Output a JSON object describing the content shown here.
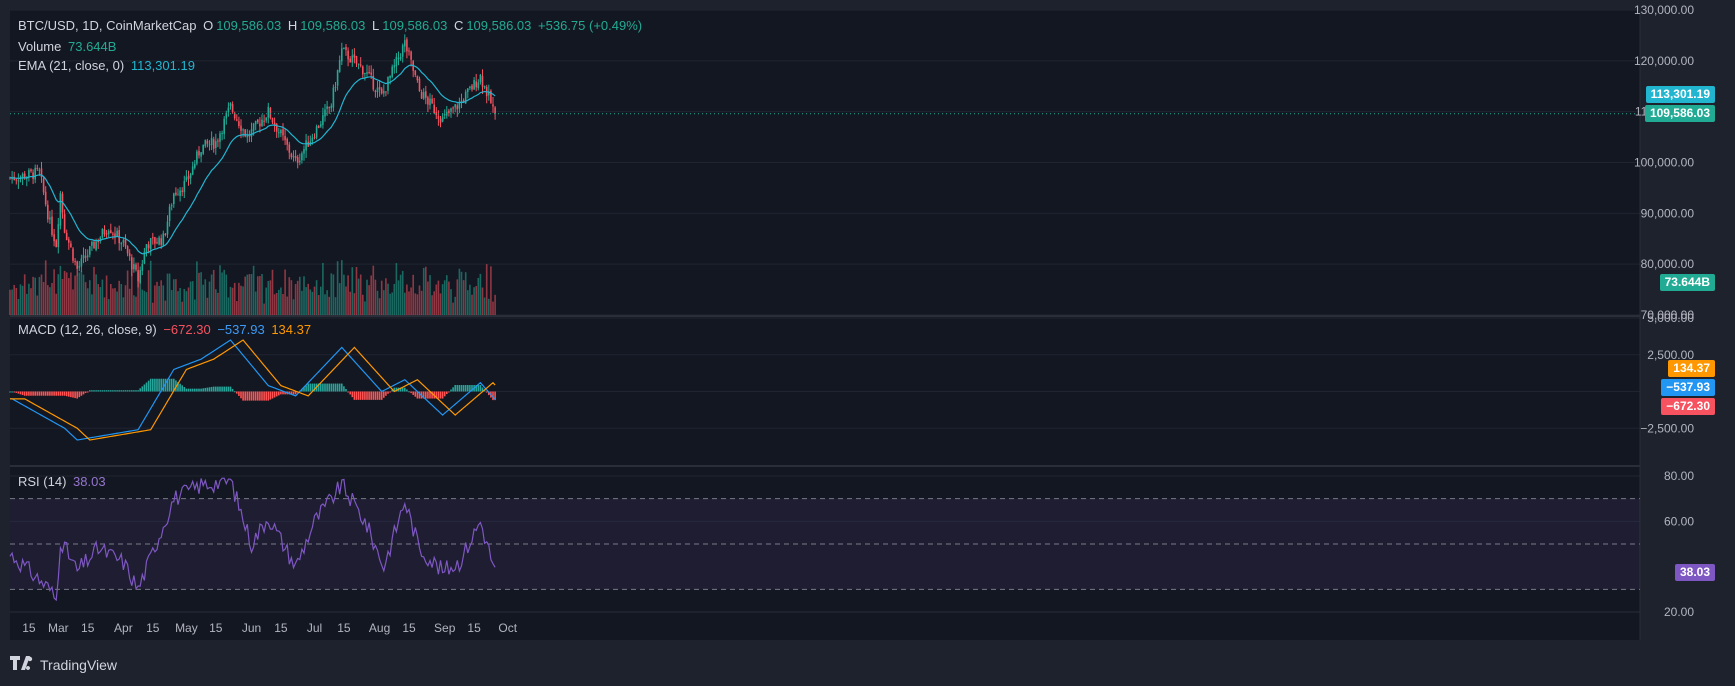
{
  "symbol_header": {
    "symbol": "BTC/USD, 1D, CoinMarketCap",
    "o_label": "O",
    "o": "109,586.03",
    "h_label": "H",
    "h": "109,586.03",
    "l_label": "L",
    "l": "109,586.03",
    "c_label": "C",
    "c": "109,586.03",
    "change": "+536.75 (+0.49%)"
  },
  "volume": {
    "label": "Volume",
    "value": "73.644B"
  },
  "ema": {
    "label": "EMA (21, close, 0)",
    "value": "113,301.19"
  },
  "macd": {
    "label": "MACD (12, 26, close, 9)",
    "hist": "−672.30",
    "macd": "−537.93",
    "signal": "134.37"
  },
  "rsi": {
    "label": "RSI (14)",
    "value": "38.03"
  },
  "price_axis": [
    "130,000.00",
    "120,000.00",
    "110,000.00",
    "100,000.00",
    "90,000.00",
    "80,000.00",
    "70,000.00"
  ],
  "macd_axis": [
    "5,000.00",
    "2,500.00",
    "−2,500.00"
  ],
  "rsi_axis": [
    "80.00",
    "60.00",
    "20.00"
  ],
  "badges": {
    "ema": "113,301.19",
    "price": "109,586.03",
    "volume": "73.644B",
    "signal": "134.37",
    "macd": "−537.93",
    "hist": "−672.30",
    "rsi": "38.03"
  },
  "time_axis": [
    "15",
    "Mar",
    "15",
    "Apr",
    "15",
    "May",
    "15",
    "Jun",
    "15",
    "Jul",
    "15",
    "Aug",
    "15",
    "Sep",
    "15",
    "Oct"
  ],
  "brand": "TradingView",
  "colors": {
    "up": "#22ab94",
    "down": "#f7525f",
    "ema": "#22b5d0",
    "macd": "#2196f3",
    "signal": "#ff9800",
    "rsi": "#7e57c2",
    "bg": "#131722"
  },
  "chart_data": {
    "type": "candlestick",
    "timeframe": "1D",
    "price_ylim": [
      70000,
      130000
    ],
    "close_keypoints": [
      [
        "Feb 7",
        97000
      ],
      [
        "Feb 20",
        98000
      ],
      [
        "Feb 25",
        88000
      ],
      [
        "Feb 28",
        84000
      ],
      [
        "Mar 2",
        94000
      ],
      [
        "Mar 4",
        87000
      ],
      [
        "Mar 10",
        79000
      ],
      [
        "Mar 20",
        85000
      ],
      [
        "Mar 25",
        87500
      ],
      [
        "Apr 1",
        84000
      ],
      [
        "Apr 8",
        77000
      ],
      [
        "Apr 12",
        84000
      ],
      [
        "Apr 20",
        85000
      ],
      [
        "Apr 25",
        94000
      ],
      [
        "May 1",
        96000
      ],
      [
        "May 8",
        103000
      ],
      [
        "May 15",
        104000
      ],
      [
        "May 22",
        111000
      ],
      [
        "May 30",
        105000
      ],
      [
        "Jun 9",
        110000
      ],
      [
        "Jun 22",
        100000
      ],
      [
        "Jul 1",
        106000
      ],
      [
        "Jul 9",
        111500
      ],
      [
        "Jul 14",
        122000
      ],
      [
        "Jul 25",
        118000
      ],
      [
        "Aug 2",
        113000
      ],
      [
        "Aug 13",
        123500
      ],
      [
        "Aug 20",
        114000
      ],
      [
        "Aug 31",
        108500
      ],
      [
        "Sep 8",
        111500
      ],
      [
        "Sep 18",
        117000
      ],
      [
        "Sep 25",
        109586
      ]
    ],
    "volume_ylim": [
      0,
      85
    ],
    "macd_ylim": [
      -5000,
      5000
    ],
    "macd_keypoints": [
      [
        "Feb 7",
        -500
      ],
      [
        "Mar 4",
        -2500
      ],
      [
        "Mar 10",
        -3300
      ],
      [
        "Apr 8",
        -2600
      ],
      [
        "Apr 25",
        1500
      ],
      [
        "May 8",
        2200
      ],
      [
        "May 22",
        3500
      ],
      [
        "Jun 9",
        400
      ],
      [
        "Jun 22",
        -300
      ],
      [
        "Jul 14",
        3000
      ],
      [
        "Aug 2",
        0
      ],
      [
        "Aug 13",
        800
      ],
      [
        "Aug 31",
        -1600
      ],
      [
        "Sep 18",
        600
      ],
      [
        "Sep 25",
        -538
      ]
    ],
    "rsi_ylim": [
      20,
      80
    ],
    "rsi_levels": [
      70,
      50,
      30
    ],
    "rsi_keypoints": [
      [
        "Feb 7",
        45
      ],
      [
        "Feb 25",
        30
      ],
      [
        "Feb 28",
        25
      ],
      [
        "Mar 2",
        52
      ],
      [
        "Mar 10",
        38
      ],
      [
        "Mar 20",
        48
      ],
      [
        "Apr 1",
        42
      ],
      [
        "Apr 8",
        30
      ],
      [
        "Apr 25",
        70
      ],
      [
        "May 8",
        76
      ],
      [
        "May 22",
        78
      ],
      [
        "Jun 1",
        50
      ],
      [
        "Jun 9",
        62
      ],
      [
        "Jun 22",
        40
      ],
      [
        "Jul 1",
        60
      ],
      [
        "Jul 14",
        76
      ],
      [
        "Jul 25",
        60
      ],
      [
        "Aug 3",
        40
      ],
      [
        "Aug 13",
        69
      ],
      [
        "Aug 20",
        48
      ],
      [
        "Aug 31",
        38
      ],
      [
        "Sep 8",
        42
      ],
      [
        "Sep 18",
        60
      ],
      [
        "Sep 25",
        38
      ]
    ]
  }
}
